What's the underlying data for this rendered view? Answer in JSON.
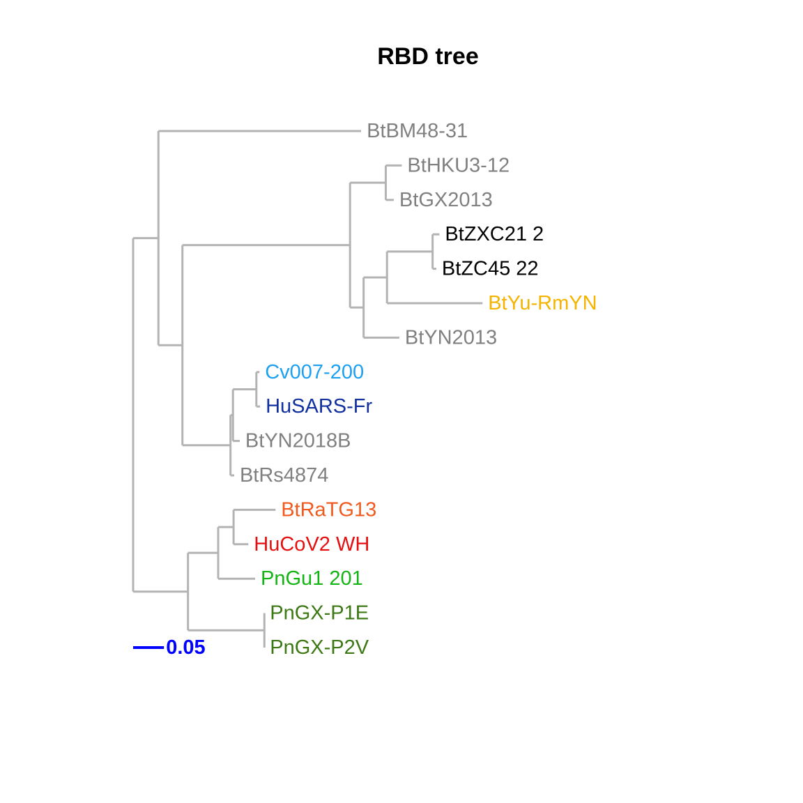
{
  "title": "RBD tree",
  "branch_color": "#b3b3b3",
  "scale_bar": {
    "label": "0.05",
    "length": 0.05,
    "color": "#0000ff"
  },
  "tips": [
    {
      "id": "BtBM48-31",
      "label": "BtBM48-31",
      "color": "#808080"
    },
    {
      "id": "BtHKU3-12",
      "label": "BtHKU3-12",
      "color": "#808080"
    },
    {
      "id": "BtGX2013",
      "label": "BtGX2013",
      "color": "#808080"
    },
    {
      "id": "BtZXC21_2",
      "label": "BtZXC21 2",
      "color": "#000000"
    },
    {
      "id": "BtZC45_22",
      "label": "BtZC45 22",
      "color": "#000000"
    },
    {
      "id": "BtYu-RmYN",
      "label": "BtYu-RmYN",
      "color": "#f5b400"
    },
    {
      "id": "BtYN2013",
      "label": "BtYN2013",
      "color": "#808080"
    },
    {
      "id": "Cv007-200",
      "label": "Cv007-200",
      "color": "#1ea0f0"
    },
    {
      "id": "HuSARS-Fr",
      "label": "HuSARS-Fr",
      "color": "#1030a0"
    },
    {
      "id": "BtYN2018B",
      "label": "BtYN2018B",
      "color": "#808080"
    },
    {
      "id": "BtRs4874",
      "label": "BtRs4874",
      "color": "#808080"
    },
    {
      "id": "BtRaTG13",
      "label": "BtRaTG13",
      "color": "#f05a1e"
    },
    {
      "id": "HuCoV2_WH",
      "label": "HuCoV2 WH",
      "color": "#e60f0f"
    },
    {
      "id": "PnGu1_201",
      "label": "PnGu1 201",
      "color": "#14b414"
    },
    {
      "id": "PnGX-P1E",
      "label": "PnGX-P1E",
      "color": "#3c7814"
    },
    {
      "id": "PnGX-P2V",
      "label": "PnGX-P2V",
      "color": "#3c7814"
    }
  ],
  "tree": {
    "id": "root",
    "len": 0,
    "children": [
      {
        "id": "n1",
        "len": 0.041,
        "children": [
          {
            "tip": "BtBM48-31",
            "len": 0.329
          },
          {
            "id": "n2",
            "len": 0.039,
            "children": [
              {
                "id": "n3",
                "len": 0.272,
                "children": [
                  {
                    "id": "n4",
                    "len": 0.058,
                    "children": [
                      {
                        "tip": "BtHKU3-12",
                        "len": 0.026
                      },
                      {
                        "tip": "BtGX2013",
                        "len": 0.013
                      }
                    ]
                  },
                  {
                    "id": "n5",
                    "len": 0.022,
                    "children": [
                      {
                        "id": "n6",
                        "len": 0.038,
                        "children": [
                          {
                            "id": "n7",
                            "len": 0.074,
                            "children": [
                              {
                                "tip": "BtZXC21_2",
                                "len": 0.011
                              },
                              {
                                "tip": "BtZC45_22",
                                "len": 0.006
                              }
                            ]
                          },
                          {
                            "tip": "BtYu-RmYN",
                            "len": 0.155
                          }
                        ]
                      },
                      {
                        "tip": "BtYN2013",
                        "len": 0.058
                      }
                    ]
                  }
                ]
              },
              {
                "id": "n8",
                "len": 0.075,
                "children": [
                  {
                    "id": "n9",
                    "len": 0.003,
                    "children": [
                      {
                        "id": "n10",
                        "len": 0.004,
                        "children": [
                          {
                            "id": "n11",
                            "len": 0.038,
                            "children": [
                              {
                                "tip": "Cv007-200",
                                "len": 0.005
                              },
                              {
                                "tip": "HuSARS-Fr",
                                "len": 0.006
                              }
                            ]
                          },
                          {
                            "tip": "BtYN2018B",
                            "len": 0.011
                          }
                        ]
                      },
                      {
                        "tip": "BtRs4874",
                        "len": 0.006
                      }
                    ]
                  }
                ]
              }
            ]
          }
        ]
      },
      {
        "id": "n12",
        "len": 0.089,
        "children": [
          {
            "id": "n13",
            "len": 0.049,
            "children": [
              {
                "id": "n14",
                "len": 0.025,
                "children": [
                  {
                    "tip": "BtRaTG13",
                    "len": 0.068
                  },
                  {
                    "tip": "HuCoV2_WH",
                    "len": 0.024
                  }
                ]
              },
              {
                "tip": "PnGu1_201",
                "len": 0.06
              }
            ]
          },
          {
            "id": "n15",
            "len": 0.124,
            "children": [
              {
                "tip": "PnGX-P1E",
                "len": 0.0
              },
              {
                "tip": "PnGX-P2V",
                "len": 0.0
              }
            ]
          }
        ]
      }
    ]
  }
}
